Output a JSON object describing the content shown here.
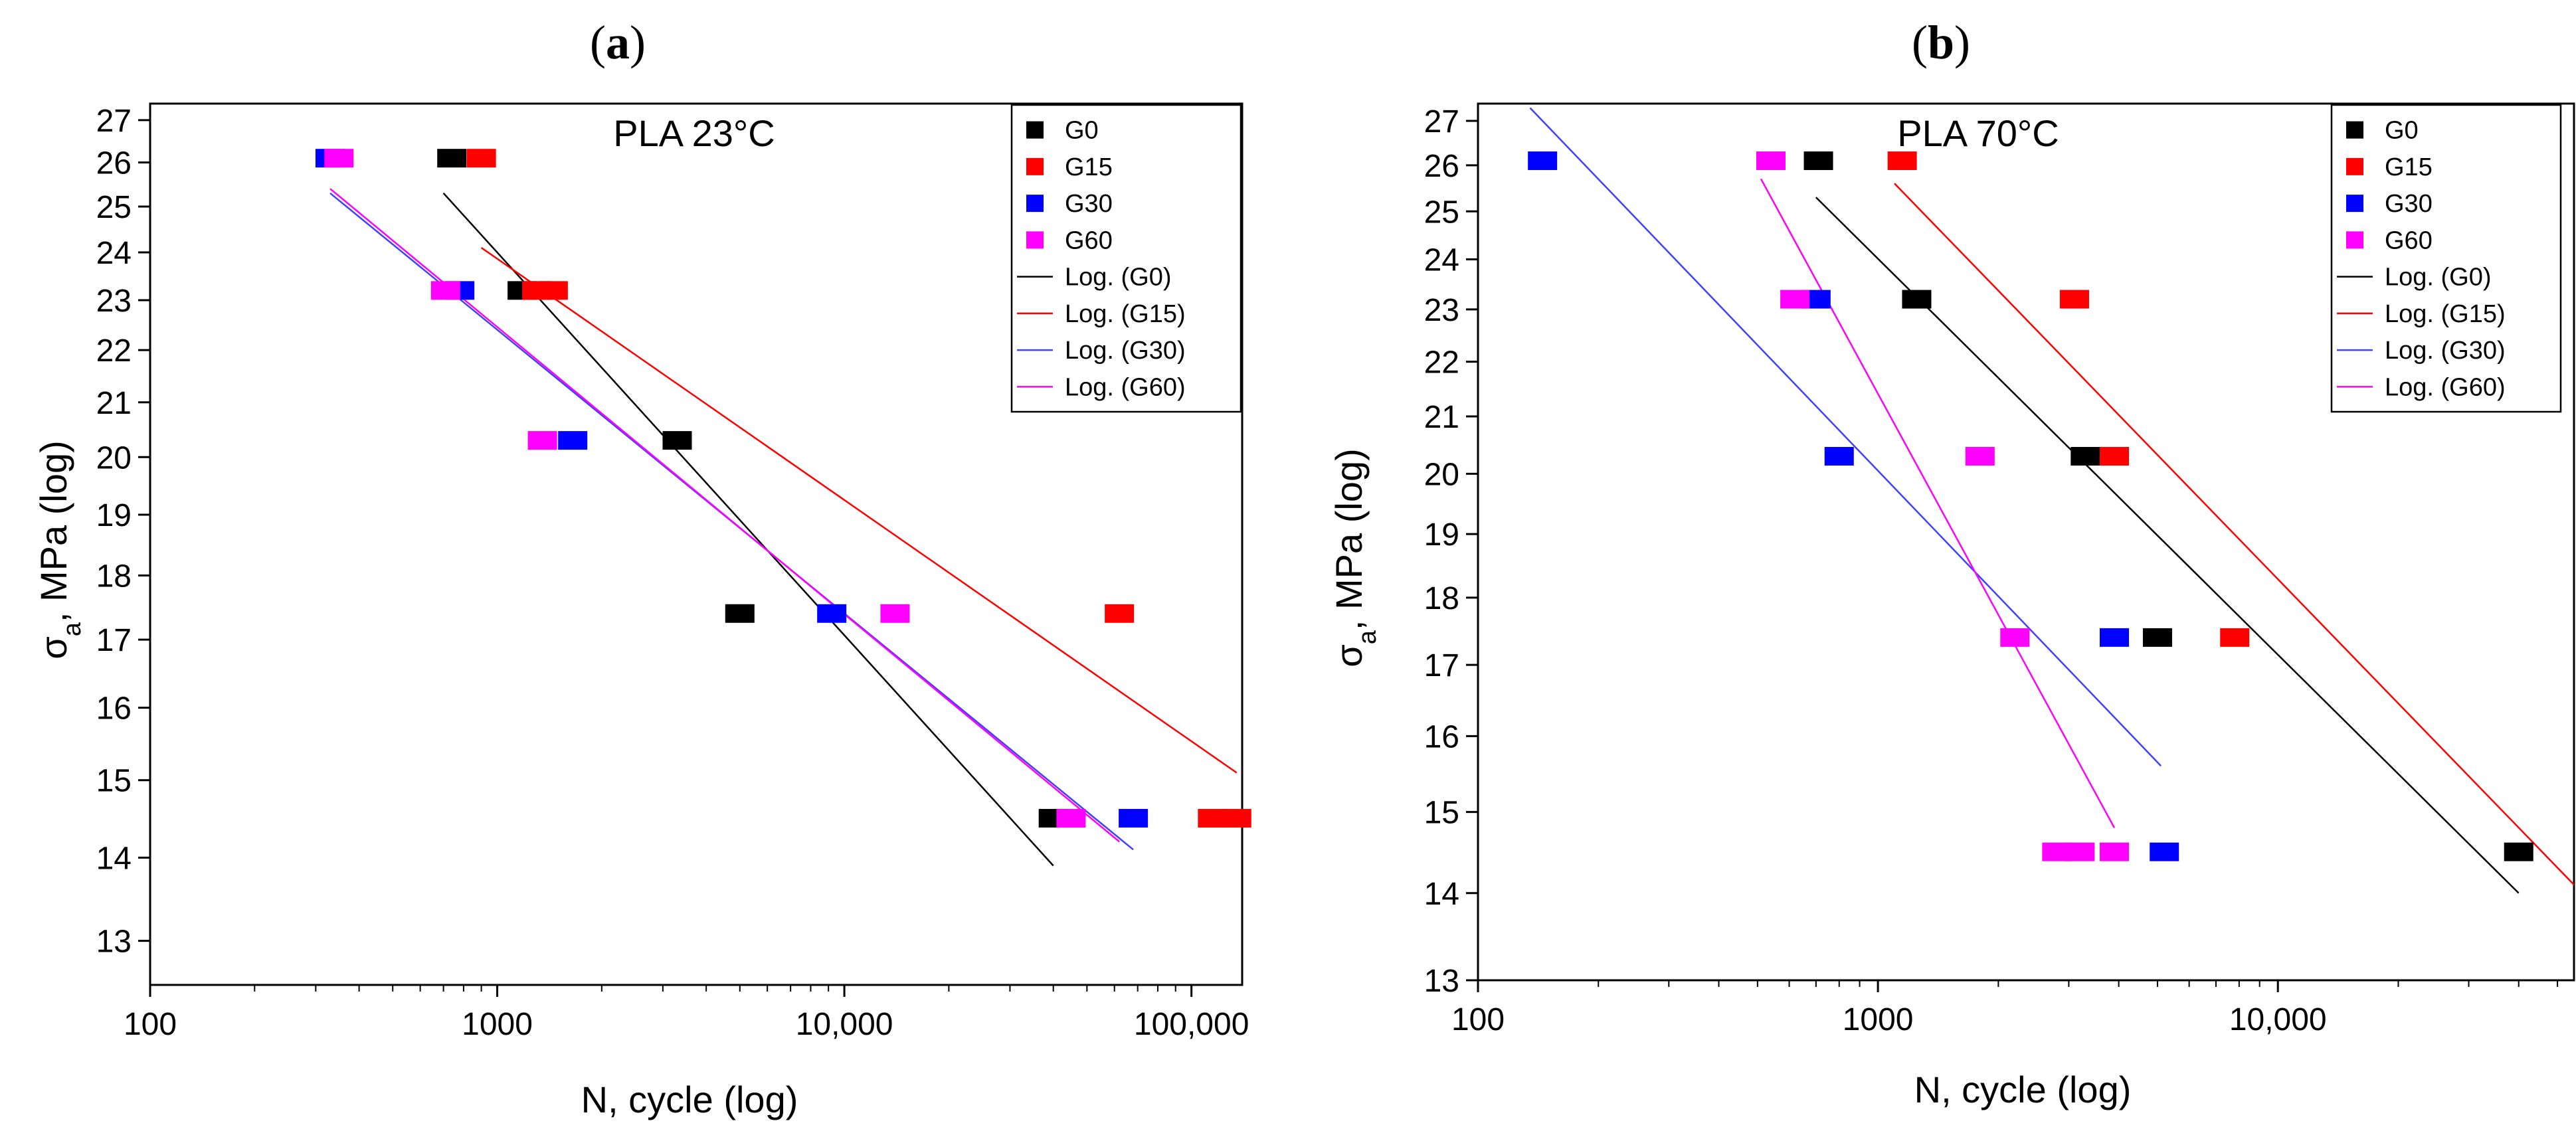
{
  "figure": {
    "panel_labels": [
      "(a)",
      "(b)"
    ]
  },
  "colors": {
    "G0": "#000000",
    "G15": "#ff0000",
    "G30": "#0000ff",
    "G60": "#ff00ff",
    "fit_G30": "#4040ff"
  },
  "chart_data": [
    {
      "type": "scatter",
      "panel": "(a)",
      "panel_letter": "a",
      "title": "PLA 23°C",
      "xlabel": "N, cycle (log)",
      "ylabel_main": "σ",
      "ylabel_sub": "a",
      "ylabel_rest": ", MPa (log)",
      "xscale": "log",
      "yscale": "log",
      "xlim": [
        100,
        140000
      ],
      "ylim": [
        12.5,
        27.4
      ],
      "xticks": [
        {
          "v": 100,
          "label": "100"
        },
        {
          "v": 1000,
          "label": "1000"
        },
        {
          "v": 10000,
          "label": "10,000"
        },
        {
          "v": 100000,
          "label": "100,000"
        }
      ],
      "yticks": [
        13,
        14,
        15,
        16,
        17,
        18,
        19,
        20,
        21,
        22,
        23,
        24,
        25,
        26,
        27
      ],
      "legend": [
        "G0",
        "G15",
        "G30",
        "G60",
        "Log. (G0)",
        "Log. (G15)",
        "Log. (G30)",
        "Log. (G60)"
      ],
      "series": [
        {
          "name": "G0",
          "color": "#000000",
          "points": [
            [
              740,
              26.1
            ],
            [
              1180,
              23.2
            ],
            [
              3300,
              20.3
            ],
            [
              5000,
              17.4
            ],
            [
              40000,
              14.5
            ]
          ]
        },
        {
          "name": "G15",
          "color": "#ff0000",
          "points": [
            [
              900,
              26.1
            ],
            [
              1300,
              23.2
            ],
            [
              1450,
              23.2
            ],
            [
              62000,
              17.4
            ],
            [
              115000,
              14.5
            ],
            [
              135000,
              14.5
            ]
          ]
        },
        {
          "name": "G30",
          "color": "#0000ff",
          "points": [
            [
              330,
              26.1
            ],
            [
              780,
              23.2
            ],
            [
              1650,
              20.3
            ],
            [
              9200,
              17.4
            ],
            [
              68000,
              14.5
            ]
          ]
        },
        {
          "name": "G60",
          "color": "#ff00ff",
          "points": [
            [
              350,
              26.1
            ],
            [
              710,
              23.2
            ],
            [
              1350,
              20.3
            ],
            [
              14000,
              17.4
            ],
            [
              45000,
              14.5
            ]
          ]
        }
      ],
      "fits": [
        {
          "name": "Log. (G0)",
          "color": "#000000",
          "x": [
            700,
            40000
          ],
          "y": [
            25.3,
            13.9
          ]
        },
        {
          "name": "Log. (G15)",
          "color": "#ff0000",
          "x": [
            900,
            135000
          ],
          "y": [
            24.1,
            15.1
          ]
        },
        {
          "name": "Log. (G30)",
          "color": "#4040ff",
          "x": [
            330,
            68000
          ],
          "y": [
            25.3,
            14.1
          ]
        },
        {
          "name": "Log. (G60)",
          "color": "#ff00ff",
          "x": [
            330,
            62000
          ],
          "y": [
            25.4,
            14.2
          ]
        }
      ]
    },
    {
      "type": "scatter",
      "panel": "(b)",
      "panel_letter": "b",
      "title": "PLA 70°C",
      "xlabel": "N, cycle (log)",
      "ylabel_main": "σ",
      "ylabel_sub": "a",
      "ylabel_rest": ", MPa (log)",
      "xscale": "log",
      "yscale": "log",
      "xlim": [
        100,
        55000
      ],
      "ylim": [
        13,
        27.4
      ],
      "xticks": [
        {
          "v": 100,
          "label": "100"
        },
        {
          "v": 1000,
          "label": "1000"
        },
        {
          "v": 10000,
          "label": "10,000"
        }
      ],
      "yticks": [
        13,
        14,
        15,
        16,
        17,
        18,
        19,
        20,
        21,
        22,
        23,
        24,
        25,
        26,
        27
      ],
      "legend": [
        "G0",
        "G15",
        "G30",
        "G60",
        "Log. (G0)",
        "Log. (G15)",
        "Log. (G30)",
        "Log. (G60)"
      ],
      "series": [
        {
          "name": "G0",
          "color": "#000000",
          "points": [
            [
              710,
              26.1
            ],
            [
              1250,
              23.2
            ],
            [
              3300,
              20.3
            ],
            [
              5000,
              17.4
            ],
            [
              40000,
              14.5
            ]
          ]
        },
        {
          "name": "G15",
          "color": "#ff0000",
          "points": [
            [
              1150,
              26.1
            ],
            [
              3100,
              23.2
            ],
            [
              3900,
              20.3
            ],
            [
              7800,
              17.4
            ]
          ]
        },
        {
          "name": "G30",
          "color": "#0000ff",
          "points": [
            [
              145,
              26.1
            ],
            [
              700,
              23.2
            ],
            [
              800,
              20.3
            ],
            [
              3900,
              17.4
            ],
            [
              5200,
              14.5
            ]
          ]
        },
        {
          "name": "G60",
          "color": "#ff00ff",
          "points": [
            [
              540,
              26.1
            ],
            [
              620,
              23.2
            ],
            [
              1800,
              20.3
            ],
            [
              2200,
              17.4
            ],
            [
              2800,
              14.5
            ],
            [
              3200,
              14.5
            ],
            [
              3900,
              14.5
            ]
          ]
        }
      ],
      "fits": [
        {
          "name": "Log. (G0)",
          "color": "#000000",
          "x": [
            700,
            40000
          ],
          "y": [
            25.3,
            14.0
          ]
        },
        {
          "name": "Log. (G15)",
          "color": "#ff0000",
          "x": [
            1100,
            55000
          ],
          "y": [
            25.6,
            14.1
          ]
        },
        {
          "name": "Log. (G30)",
          "color": "#4040ff",
          "x": [
            135,
            5100
          ],
          "y": [
            27.3,
            15.6
          ]
        },
        {
          "name": "Log. (G60)",
          "color": "#ff00ff",
          "x": [
            510,
            3900
          ],
          "y": [
            25.7,
            14.8
          ]
        }
      ]
    }
  ]
}
